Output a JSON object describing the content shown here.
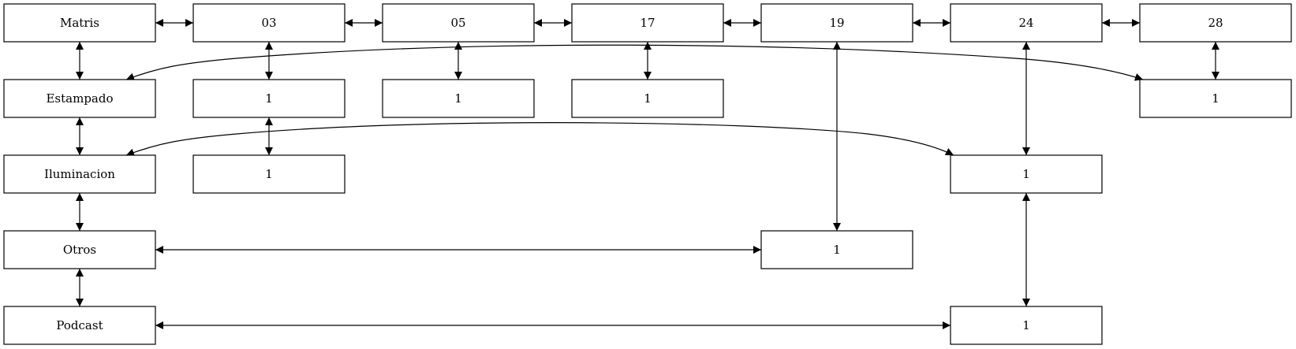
{
  "nodes": {
    "matris": "Matris",
    "estampado": "Estampado",
    "iluminacion": "Iluminacion",
    "otros": "Otros",
    "podcast": "Podcast",
    "h03": "03",
    "h05": "05",
    "h17": "17",
    "h19": "19",
    "h24": "24",
    "h28": "28",
    "c03_estampado": "1",
    "c05_estampado": "1",
    "c17_estampado": "1",
    "c28_estampado": "1",
    "c03_iluminacion": "1",
    "c24_iluminacion": "1",
    "c19_otros": "1",
    "c24_podcast": "1"
  },
  "edges": [
    {
      "from": "matris",
      "to": "h03"
    },
    {
      "from": "h03",
      "to": "h05"
    },
    {
      "from": "h05",
      "to": "h17"
    },
    {
      "from": "h17",
      "to": "h19"
    },
    {
      "from": "h19",
      "to": "h24"
    },
    {
      "from": "h24",
      "to": "h28"
    },
    {
      "from": "matris",
      "to": "estampado"
    },
    {
      "from": "estampado",
      "to": "iluminacion"
    },
    {
      "from": "iluminacion",
      "to": "otros"
    },
    {
      "from": "otros",
      "to": "podcast"
    },
    {
      "from": "h03",
      "to": "c03_estampado"
    },
    {
      "from": "c03_estampado",
      "to": "c03_iluminacion"
    },
    {
      "from": "h05",
      "to": "c05_estampado"
    },
    {
      "from": "h17",
      "to": "c17_estampado"
    },
    {
      "from": "h19",
      "to": "c19_otros"
    },
    {
      "from": "h24",
      "to": "c24_iluminacion"
    },
    {
      "from": "c24_iluminacion",
      "to": "c24_podcast"
    },
    {
      "from": "h28",
      "to": "c28_estampado"
    },
    {
      "from": "estampado",
      "to": "c28_estampado"
    },
    {
      "from": "iluminacion",
      "to": "c24_iluminacion"
    },
    {
      "from": "otros",
      "to": "c19_otros"
    },
    {
      "from": "podcast",
      "to": "c24_podcast"
    }
  ]
}
